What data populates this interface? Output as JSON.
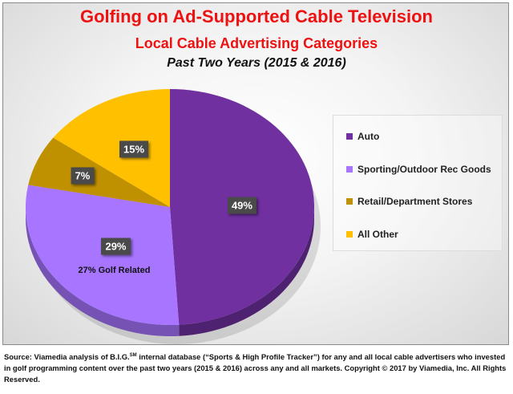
{
  "chart_data": {
    "type": "pie",
    "title": "Golfing on Ad-Supported Cable Television",
    "subtitle": "Local Cable Advertising Categories",
    "subtitle2": "Past Two Years (2015 & 2016)",
    "categories": [
      "Auto",
      "Sporting/Outdoor Rec Goods",
      "Retail/Department Stores",
      "All Other"
    ],
    "values": [
      49,
      29,
      7,
      15
    ],
    "data_labels": [
      "49%",
      "29%",
      "7%",
      "15%"
    ],
    "annotation": "27% Golf Related",
    "colors": [
      "#7030a0",
      "#a775ff",
      "#bf9000",
      "#ffc000"
    ],
    "legend_position": "right"
  },
  "footer": {
    "source_prefix": "Source: Viamedia analysis of B.I.G.",
    "source_sup": "SM",
    "source_rest": "  internal database (“Sports & High Profile Tracker”) for any and all local cable advertisers who invested in golf programming content over the past two years (2015 & 2016) across any and all markets. Copyright © 2017 by Viamedia, Inc. All Rights Reserved."
  }
}
